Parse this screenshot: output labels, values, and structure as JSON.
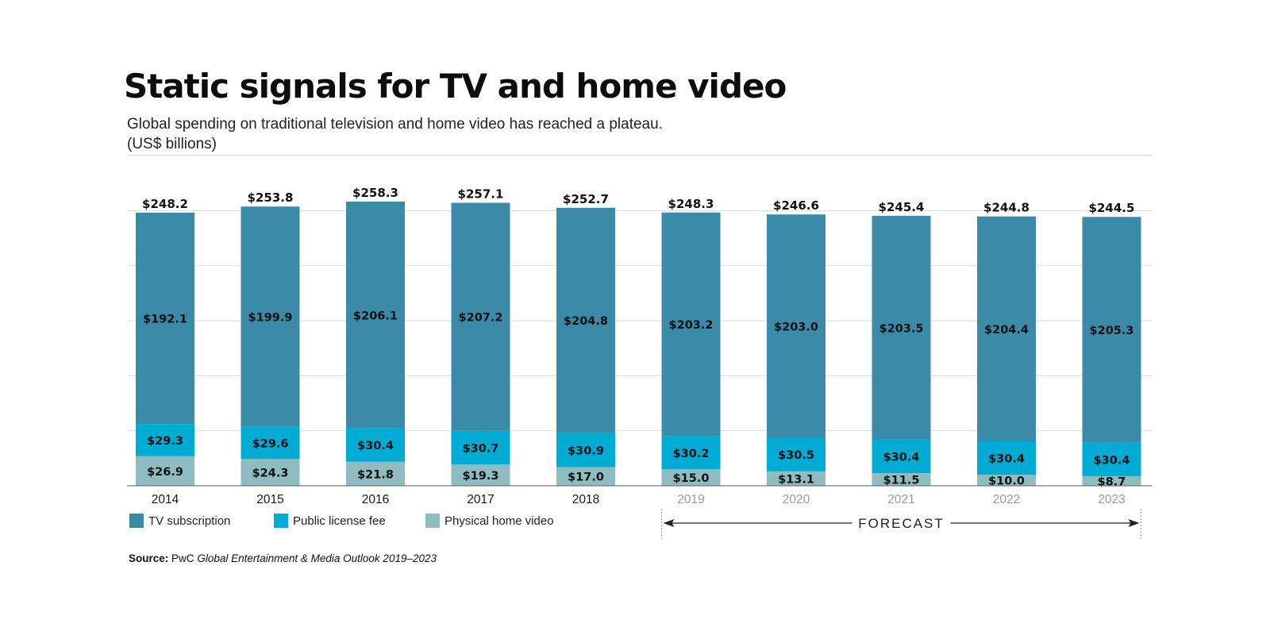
{
  "title": "Static signals for TV and home video",
  "subtitle_line1": "Global spending on traditional television and home video has reached a plateau.",
  "subtitle_line2": "(US$ billions)",
  "forecast_label": "FORECAST",
  "source": {
    "label": "Source:",
    "publisher": "PwC",
    "publication": "Global Entertainment & Media Outlook 2019–2023"
  },
  "colors": {
    "tv_subscription": "#3a8aa8",
    "public_license_fee": "#00acd4",
    "physical_home_video": "#8fbcc1",
    "gridline": "#dcdcdc",
    "axis": "#7a7a7a",
    "historical_year": "#1a1a1a",
    "forecast_year": "#9a9a9a"
  },
  "chart_data": {
    "type": "bar",
    "stacked": true,
    "categories": [
      "2014",
      "2015",
      "2016",
      "2017",
      "2018",
      "2019",
      "2020",
      "2021",
      "2022",
      "2023"
    ],
    "forecast_from": "2019",
    "series": [
      {
        "name": "Physical home video",
        "color": "#8fbcc1",
        "values": [
          26.9,
          24.3,
          21.8,
          19.3,
          17.0,
          15.0,
          13.1,
          11.5,
          10.0,
          8.7
        ],
        "labels": [
          "$26.9",
          "$24.3",
          "$21.8",
          "$19.3",
          "$17.0",
          "$15.0",
          "$13.1",
          "$11.5",
          "$10.0",
          "$8.7"
        ]
      },
      {
        "name": "Public license fee",
        "color": "#00acd4",
        "values": [
          29.3,
          29.6,
          30.4,
          30.7,
          30.9,
          30.2,
          30.5,
          30.4,
          30.4,
          30.4
        ],
        "labels": [
          "$29.3",
          "$29.6",
          "$30.4",
          "$30.7",
          "$30.9",
          "$30.2",
          "$30.5",
          "$30.4",
          "$30.4",
          "$30.4"
        ]
      },
      {
        "name": "TV subscription",
        "color": "#3a8aa8",
        "values": [
          192.1,
          199.9,
          206.1,
          207.2,
          204.8,
          203.2,
          203.0,
          203.5,
          204.4,
          205.3
        ],
        "labels": [
          "$192.1",
          "$199.9",
          "$206.1",
          "$207.2",
          "$204.8",
          "$203.2",
          "$203.0",
          "$203.5",
          "$204.4",
          "$205.3"
        ]
      }
    ],
    "totals": [
      248.2,
      253.8,
      258.3,
      257.1,
      252.7,
      248.3,
      246.6,
      245.4,
      244.8,
      244.5
    ],
    "total_labels": [
      "$248.2",
      "$253.8",
      "$258.3",
      "$257.1",
      "$252.7",
      "$248.3",
      "$246.6",
      "$245.4",
      "$244.8",
      "$244.5"
    ],
    "legend": [
      "TV subscription",
      "Public license fee",
      "Physical home video"
    ],
    "legend_placement": "bottom-left",
    "ylim": [
      0,
      250
    ],
    "y_grid": true,
    "y_tick_labels_shown": false,
    "xlabel": "",
    "ylabel": ""
  }
}
